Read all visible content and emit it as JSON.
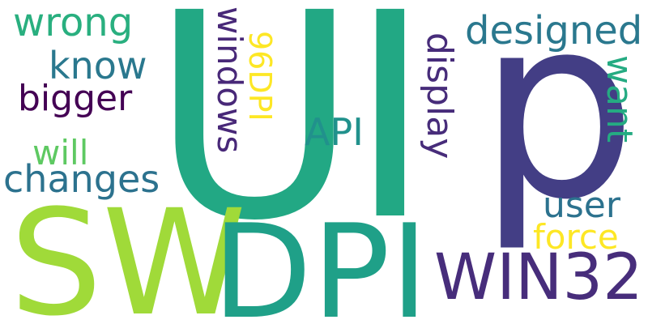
{
  "words": [
    {
      "id": "ui",
      "text": "UI",
      "color": "#22a884",
      "orientation": "horizontal"
    },
    {
      "id": "p",
      "text": "p",
      "color": "#433e85",
      "orientation": "horizontal"
    },
    {
      "id": "sw",
      "text": "SW",
      "color": "#a0da39",
      "orientation": "horizontal"
    },
    {
      "id": "dpi",
      "text": "DPI",
      "color": "#1fa088",
      "orientation": "horizontal"
    },
    {
      "id": "win32",
      "text": "WIN32",
      "color": "#472d7b",
      "orientation": "horizontal"
    },
    {
      "id": "wrong",
      "text": "wrong",
      "color": "#29af7f",
      "orientation": "horizontal"
    },
    {
      "id": "know",
      "text": "know",
      "color": "#2a788e",
      "orientation": "horizontal"
    },
    {
      "id": "bigger",
      "text": "bigger",
      "color": "#440154",
      "orientation": "horizontal"
    },
    {
      "id": "will",
      "text": "will",
      "color": "#5ec962",
      "orientation": "horizontal"
    },
    {
      "id": "changes",
      "text": "changes",
      "color": "#2c728e",
      "orientation": "horizontal"
    },
    {
      "id": "windows",
      "text": "windows",
      "color": "#482878",
      "orientation": "vertical"
    },
    {
      "id": "dpi96",
      "text": "96DPI",
      "color": "#fde725",
      "orientation": "vertical"
    },
    {
      "id": "api",
      "text": "API",
      "color": "#21918c",
      "orientation": "horizontal"
    },
    {
      "id": "display",
      "text": "display",
      "color": "#472c7a",
      "orientation": "vertical"
    },
    {
      "id": "designed",
      "text": "designed",
      "color": "#2a788e",
      "orientation": "horizontal"
    },
    {
      "id": "want",
      "text": "want",
      "color": "#25ab82",
      "orientation": "vertical"
    },
    {
      "id": "user",
      "text": "user",
      "color": "#2c728e",
      "orientation": "horizontal"
    },
    {
      "id": "force",
      "text": "force",
      "color": "#fde725",
      "orientation": "horizontal"
    }
  ]
}
